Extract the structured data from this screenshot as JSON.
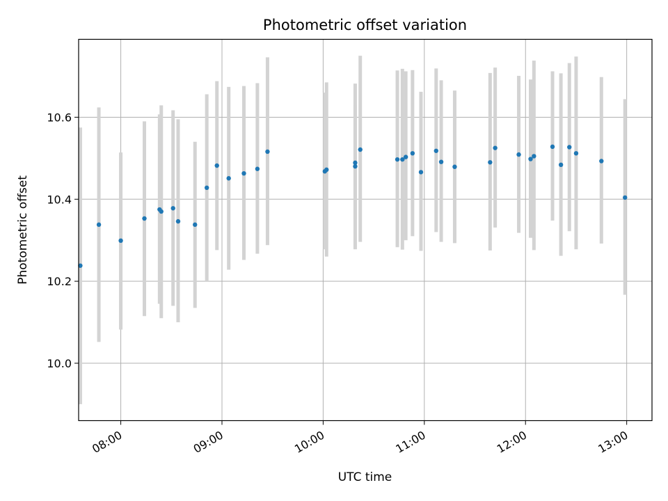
{
  "chart_data": {
    "type": "scatter",
    "title": "Photometric offset variation",
    "xlabel": "UTC time",
    "ylabel": "Photometric offset",
    "x_axis_type": "time",
    "xlim": [
      "07:35",
      "13:15"
    ],
    "ylim": [
      9.86,
      10.79
    ],
    "x_ticks": [
      "08:00",
      "09:00",
      "10:00",
      "11:00",
      "12:00",
      "13:00"
    ],
    "y_ticks": [
      10.0,
      10.2,
      10.4,
      10.6
    ],
    "y_tick_labels": [
      "10.0",
      "10.2",
      "10.4",
      "10.6"
    ],
    "grid": true,
    "colors": {
      "points": "#1f77b4",
      "error_bars": "#d3d3d3",
      "grid": "#b0b0b0"
    },
    "points": [
      {
        "x": "07:36",
        "y": 10.238,
        "lo": 9.9,
        "hi": 10.575
      },
      {
        "x": "07:47",
        "y": 10.338,
        "lo": 10.052,
        "hi": 10.624
      },
      {
        "x": "08:00",
        "y": 10.299,
        "lo": 10.082,
        "hi": 10.514
      },
      {
        "x": "08:14",
        "y": 10.353,
        "lo": 10.115,
        "hi": 10.59
      },
      {
        "x": "08:23",
        "y": 10.375,
        "lo": 10.145,
        "hi": 10.607
      },
      {
        "x": "08:24",
        "y": 10.37,
        "lo": 10.11,
        "hi": 10.629
      },
      {
        "x": "08:31",
        "y": 10.378,
        "lo": 10.14,
        "hi": 10.617
      },
      {
        "x": "08:34",
        "y": 10.346,
        "lo": 10.1,
        "hi": 10.595
      },
      {
        "x": "08:44",
        "y": 10.338,
        "lo": 10.135,
        "hi": 10.54
      },
      {
        "x": "08:51",
        "y": 10.428,
        "lo": 10.2,
        "hi": 10.656
      },
      {
        "x": "08:57",
        "y": 10.482,
        "lo": 10.276,
        "hi": 10.688
      },
      {
        "x": "09:04",
        "y": 10.451,
        "lo": 10.228,
        "hi": 10.674
      },
      {
        "x": "09:13",
        "y": 10.463,
        "lo": 10.252,
        "hi": 10.676
      },
      {
        "x": "09:21",
        "y": 10.474,
        "lo": 10.267,
        "hi": 10.683
      },
      {
        "x": "09:27",
        "y": 10.516,
        "lo": 10.288,
        "hi": 10.746
      },
      {
        "x": "10:01",
        "y": 10.468,
        "lo": 10.278,
        "hi": 10.66
      },
      {
        "x": "10:02",
        "y": 10.472,
        "lo": 10.26,
        "hi": 10.685
      },
      {
        "x": "10:19",
        "y": 10.48,
        "lo": 10.278,
        "hi": 10.682
      },
      {
        "x": "10:19",
        "y": 10.489,
        "lo": 10.35,
        "hi": 10.63
      },
      {
        "x": "10:22",
        "y": 10.521,
        "lo": 10.296,
        "hi": 10.75
      },
      {
        "x": "10:44",
        "y": 10.497,
        "lo": 10.283,
        "hi": 10.714
      },
      {
        "x": "10:47",
        "y": 10.497,
        "lo": 10.277,
        "hi": 10.718
      },
      {
        "x": "10:49",
        "y": 10.503,
        "lo": 10.3,
        "hi": 10.712
      },
      {
        "x": "10:53",
        "y": 10.512,
        "lo": 10.31,
        "hi": 10.715
      },
      {
        "x": "10:58",
        "y": 10.466,
        "lo": 10.274,
        "hi": 10.662
      },
      {
        "x": "11:07",
        "y": 10.518,
        "lo": 10.32,
        "hi": 10.719
      },
      {
        "x": "11:10",
        "y": 10.491,
        "lo": 10.296,
        "hi": 10.69
      },
      {
        "x": "11:18",
        "y": 10.479,
        "lo": 10.293,
        "hi": 10.665
      },
      {
        "x": "11:39",
        "y": 10.49,
        "lo": 10.275,
        "hi": 10.708
      },
      {
        "x": "11:42",
        "y": 10.525,
        "lo": 10.331,
        "hi": 10.721
      },
      {
        "x": "11:56",
        "y": 10.509,
        "lo": 10.318,
        "hi": 10.701
      },
      {
        "x": "12:03",
        "y": 10.498,
        "lo": 10.306,
        "hi": 10.692
      },
      {
        "x": "12:05",
        "y": 10.505,
        "lo": 10.276,
        "hi": 10.738
      },
      {
        "x": "12:16",
        "y": 10.528,
        "lo": 10.348,
        "hi": 10.712
      },
      {
        "x": "12:21",
        "y": 10.484,
        "lo": 10.262,
        "hi": 10.707
      },
      {
        "x": "12:26",
        "y": 10.527,
        "lo": 10.322,
        "hi": 10.732
      },
      {
        "x": "12:30",
        "y": 10.512,
        "lo": 10.278,
        "hi": 10.748
      },
      {
        "x": "12:45",
        "y": 10.493,
        "lo": 10.292,
        "hi": 10.698
      },
      {
        "x": "12:59",
        "y": 10.404,
        "lo": 10.167,
        "hi": 10.644
      }
    ]
  }
}
